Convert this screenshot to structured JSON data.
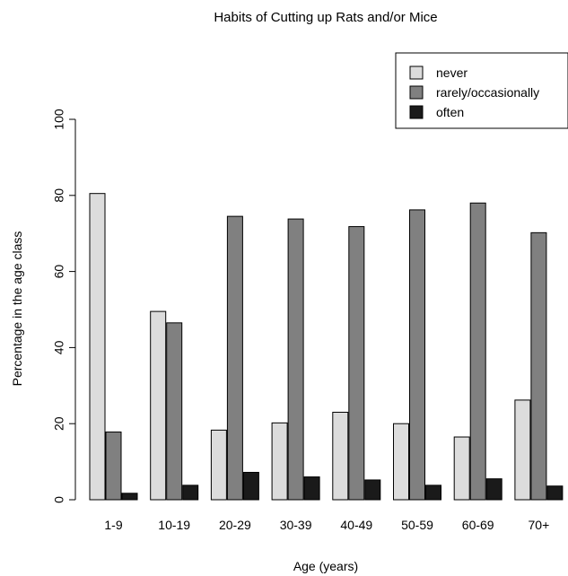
{
  "chart_data": {
    "type": "bar",
    "title": "Habits of Cutting up Rats and/or Mice",
    "xlabel": "Age (years)",
    "ylabel": "Percentage in the age class",
    "categories": [
      "1-9",
      "10-19",
      "20-29",
      "30-39",
      "40-49",
      "50-59",
      "60-69",
      "70+"
    ],
    "series": [
      {
        "name": "never",
        "color": "#dcdcdc",
        "values": [
          80.5,
          49.5,
          18.3,
          20.2,
          23.0,
          20.0,
          16.5,
          26.2
        ]
      },
      {
        "name": "rarely/occasionally",
        "color": "#808080",
        "values": [
          17.8,
          46.5,
          74.5,
          73.8,
          71.8,
          76.2,
          78.0,
          70.2
        ]
      },
      {
        "name": "often",
        "color": "#1a1a1a",
        "values": [
          1.7,
          3.8,
          7.2,
          6.0,
          5.2,
          3.8,
          5.5,
          3.6
        ]
      }
    ],
    "ylim": [
      0,
      100
    ],
    "yticks": [
      0,
      20,
      40,
      60,
      80,
      100
    ],
    "grid": false,
    "legend_position": "top-right"
  }
}
